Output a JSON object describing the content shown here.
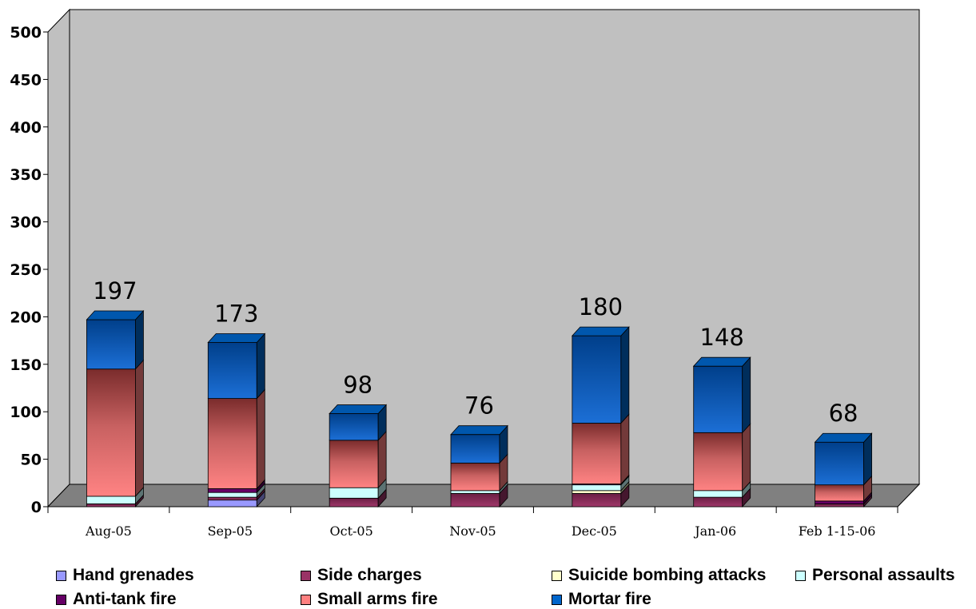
{
  "chart_data": {
    "type": "bar",
    "stacked": true,
    "three_d": true,
    "categories": [
      "Aug-05",
      "Sep-05",
      "Oct-05",
      "Nov-05",
      "Dec-05",
      "Jan-06",
      "Feb 1-15-06"
    ],
    "totals": [
      197,
      173,
      98,
      76,
      180,
      148,
      68
    ],
    "ylim": [
      0,
      500
    ],
    "yticks": [
      0,
      50,
      100,
      150,
      200,
      250,
      300,
      350,
      400,
      450,
      500
    ],
    "series": [
      {
        "name": "Hand grenades",
        "color": "#9999ff",
        "values": [
          0,
          7,
          0,
          0,
          0,
          0,
          0
        ]
      },
      {
        "name": "Side charges",
        "color": "#993366",
        "values": [
          3,
          3,
          9,
          14,
          14,
          10,
          3
        ]
      },
      {
        "name": "Suicide bombing attacks",
        "color": "#ffffcc",
        "values": [
          0,
          0,
          0,
          0,
          3,
          0,
          0
        ]
      },
      {
        "name": "Personal assaults",
        "color": "#ccffff",
        "values": [
          8,
          5,
          11,
          3,
          6,
          7,
          0
        ]
      },
      {
        "name": "Anti-tank fire",
        "color": "#660066",
        "values": [
          0,
          4,
          0,
          0,
          1,
          0,
          3
        ]
      },
      {
        "name": "Small arms fire",
        "color": "#ff8080",
        "values": [
          134,
          95,
          50,
          29,
          64,
          61,
          17
        ]
      },
      {
        "name": "Mortar fire",
        "color": "#0066cc",
        "values": [
          52,
          59,
          28,
          30,
          92,
          70,
          45
        ]
      }
    ],
    "grid": false,
    "legend_position": "bottom",
    "plot_colors": {
      "wall": "#c0c0c0",
      "floor": "#808080"
    }
  },
  "legend": {
    "items": [
      {
        "label": "Hand grenades",
        "color": "#9999ff"
      },
      {
        "label": "Side charges",
        "color": "#993366"
      },
      {
        "label": "Suicide bombing attacks",
        "color": "#ffffcc"
      },
      {
        "label": "Personal assaults",
        "color": "#ccffff"
      },
      {
        "label": "Anti-tank fire",
        "color": "#660066"
      },
      {
        "label": "Small arms fire",
        "color": "#ff8080"
      },
      {
        "label": "Mortar fire",
        "color": "#0066cc"
      }
    ]
  }
}
